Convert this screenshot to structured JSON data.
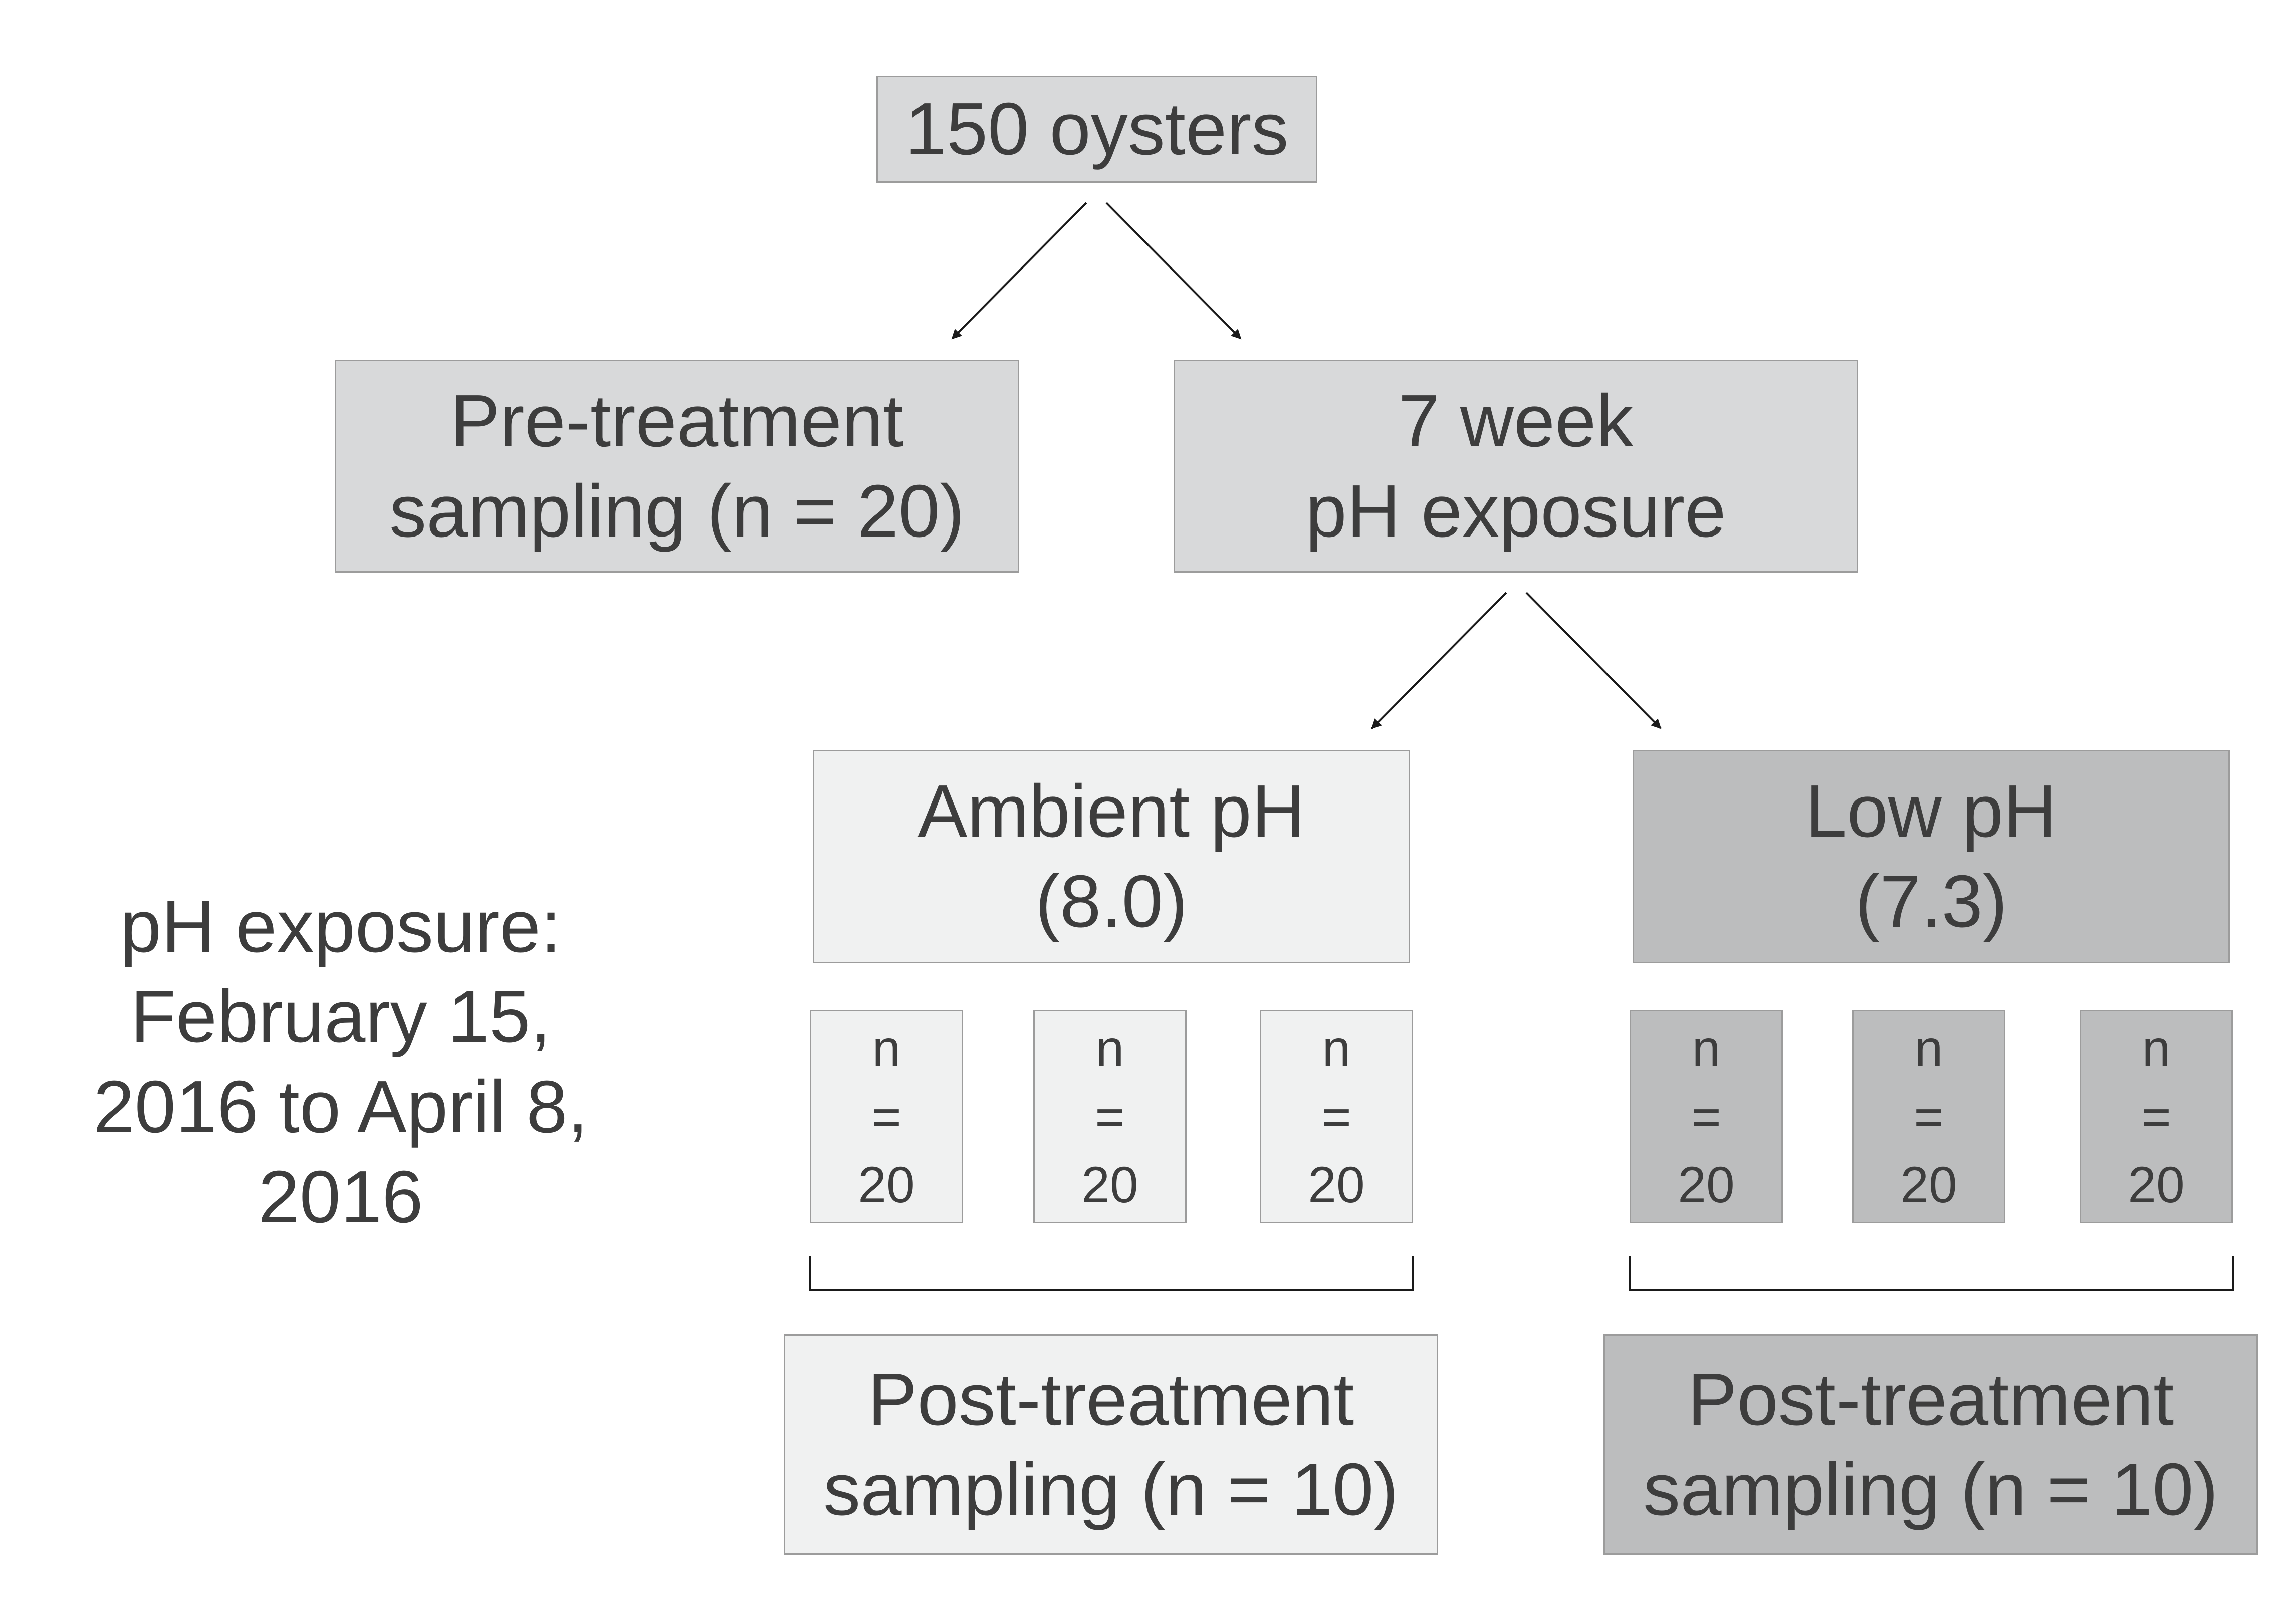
{
  "root": {
    "lines": [
      "150 oysters"
    ]
  },
  "pre_treatment": {
    "lines": [
      "Pre-treatment",
      "sampling (n = 20)"
    ]
  },
  "exposure": {
    "lines": [
      "7 week",
      "pH exposure"
    ]
  },
  "ambient": {
    "lines": [
      "Ambient pH",
      "(8.0)"
    ],
    "tanks": [
      {
        "lines": [
          "n",
          "=",
          "20"
        ]
      },
      {
        "lines": [
          "n",
          "=",
          "20"
        ]
      },
      {
        "lines": [
          "n",
          "=",
          "20"
        ]
      }
    ],
    "post": {
      "lines": [
        "Post-treatment",
        "sampling (n = 10)"
      ]
    }
  },
  "low": {
    "lines": [
      "Low pH",
      "(7.3)"
    ],
    "tanks": [
      {
        "lines": [
          "n",
          "=",
          "20"
        ]
      },
      {
        "lines": [
          "n",
          "=",
          "20"
        ]
      },
      {
        "lines": [
          "n",
          "=",
          "20"
        ]
      }
    ],
    "post": {
      "lines": [
        "Post-treatment",
        "sampling (n = 10)"
      ]
    }
  },
  "side_note": {
    "lines": [
      "pH exposure:",
      "February 15,",
      "2016 to April 8,",
      "2016"
    ]
  },
  "colors": {
    "text": "#3d3d3d",
    "border": "#9c9c9c",
    "root_fill": "#d8d9da",
    "ambient_fill": "#f0f1f1",
    "low_fill": "#bcbdbe",
    "connector": "#1a1a1a"
  }
}
